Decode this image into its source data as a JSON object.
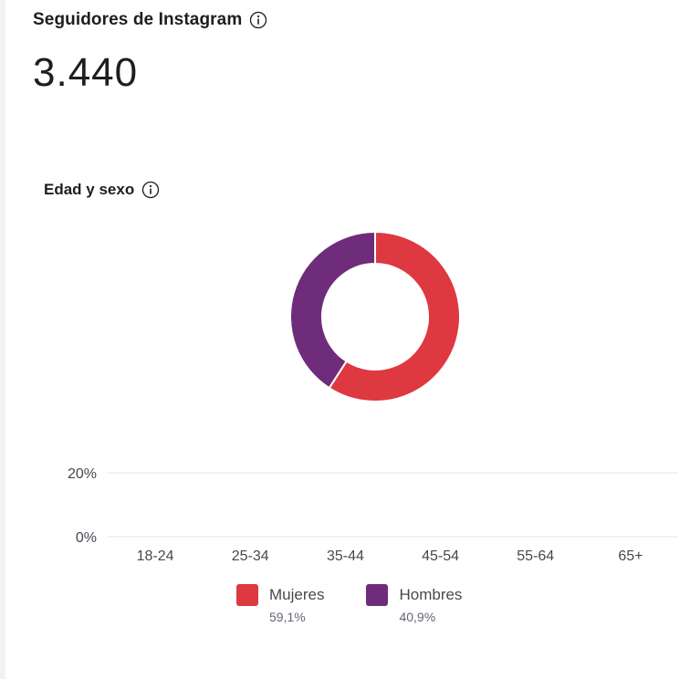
{
  "header": {
    "title": "Seguidores de Instagram",
    "info_icon": "info-icon"
  },
  "followers": {
    "count": "3.440"
  },
  "section": {
    "title": "Edad y sexo",
    "info_icon": "info-icon"
  },
  "colors": {
    "women": "#de3841",
    "men": "#6e2c7b",
    "gridline": "#e4e6eb",
    "text": "#1c1e21",
    "muted": "#606770"
  },
  "legend": [
    {
      "label": "Mujeres",
      "percent": "59,1%",
      "color": "#de3841"
    },
    {
      "label": "Hombres",
      "percent": "40,9%",
      "color": "#6e2c7b"
    }
  ],
  "chart_data": [
    {
      "type": "pie",
      "donut": true,
      "series": [
        {
          "name": "Mujeres",
          "value": 59.1,
          "color": "#de3841"
        },
        {
          "name": "Hombres",
          "value": 40.9,
          "color": "#6e2c7b"
        }
      ]
    },
    {
      "type": "bar",
      "categories": [
        "18-24",
        "25-34",
        "35-44",
        "45-54",
        "55-64",
        "65+"
      ],
      "ytick_labels": [
        "0%",
        "20%"
      ],
      "yticks": [
        0,
        20
      ],
      "ylim": [
        0,
        20
      ],
      "grid": true,
      "series": [
        {
          "name": "Mujeres",
          "values": [
            0,
            0,
            0,
            0,
            0,
            0
          ],
          "color": "#de3841"
        },
        {
          "name": "Hombres",
          "values": [
            0,
            0,
            0,
            0,
            0,
            0
          ],
          "color": "#6e2c7b"
        }
      ]
    }
  ]
}
